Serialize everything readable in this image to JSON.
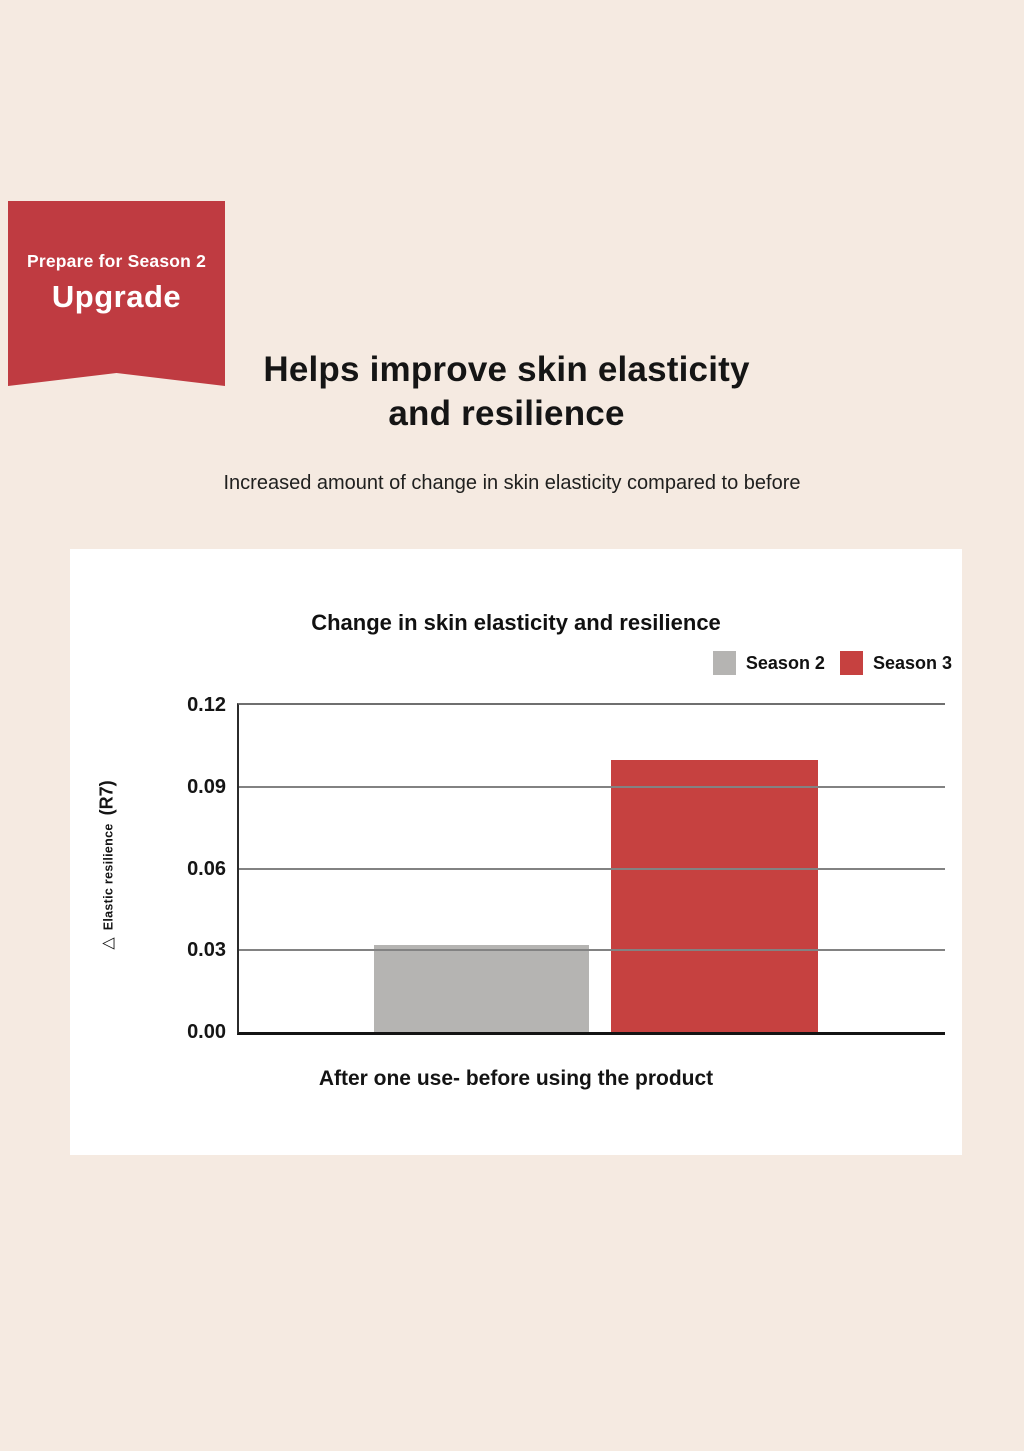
{
  "badge": {
    "line1": "Prepare for Season 2",
    "line2": "Upgrade"
  },
  "heading": {
    "line1": "Helps improve skin elasticity",
    "line2": "and resilience"
  },
  "subheading": "Increased amount of change in skin elasticity compared to before",
  "chart_data": {
    "type": "bar",
    "title": "Change in skin elasticity and resilience",
    "xlabel": "After one use- before using the product",
    "ylabel": "△ Elastic resilience (R7)",
    "ylabel_parts": {
      "delta": "△",
      "text": "Elastic resilience",
      "unit": "(R7)"
    },
    "categories": [
      "After one use- before using the product"
    ],
    "series": [
      {
        "name": "Season 2",
        "value": 0.032,
        "color": "#b5b4b2"
      },
      {
        "name": "Season 3",
        "value": 0.1,
        "color": "#c64140"
      }
    ],
    "ylim": [
      0,
      0.12
    ],
    "yticks": [
      0,
      0.03,
      0.06,
      0.09,
      0.12
    ],
    "ytick_labels": [
      "0.00",
      "0.03",
      "0.06",
      "0.09",
      "0.12"
    ],
    "grid": true,
    "legend_position": "top-right"
  },
  "colors": {
    "background": "#f5eae1",
    "card": "#ffffff",
    "ribbon_red": "#bf3b41",
    "bar_red": "#c64140",
    "bar_gray": "#b5b4b2",
    "gridline": "#828282",
    "axis": "#141414"
  }
}
